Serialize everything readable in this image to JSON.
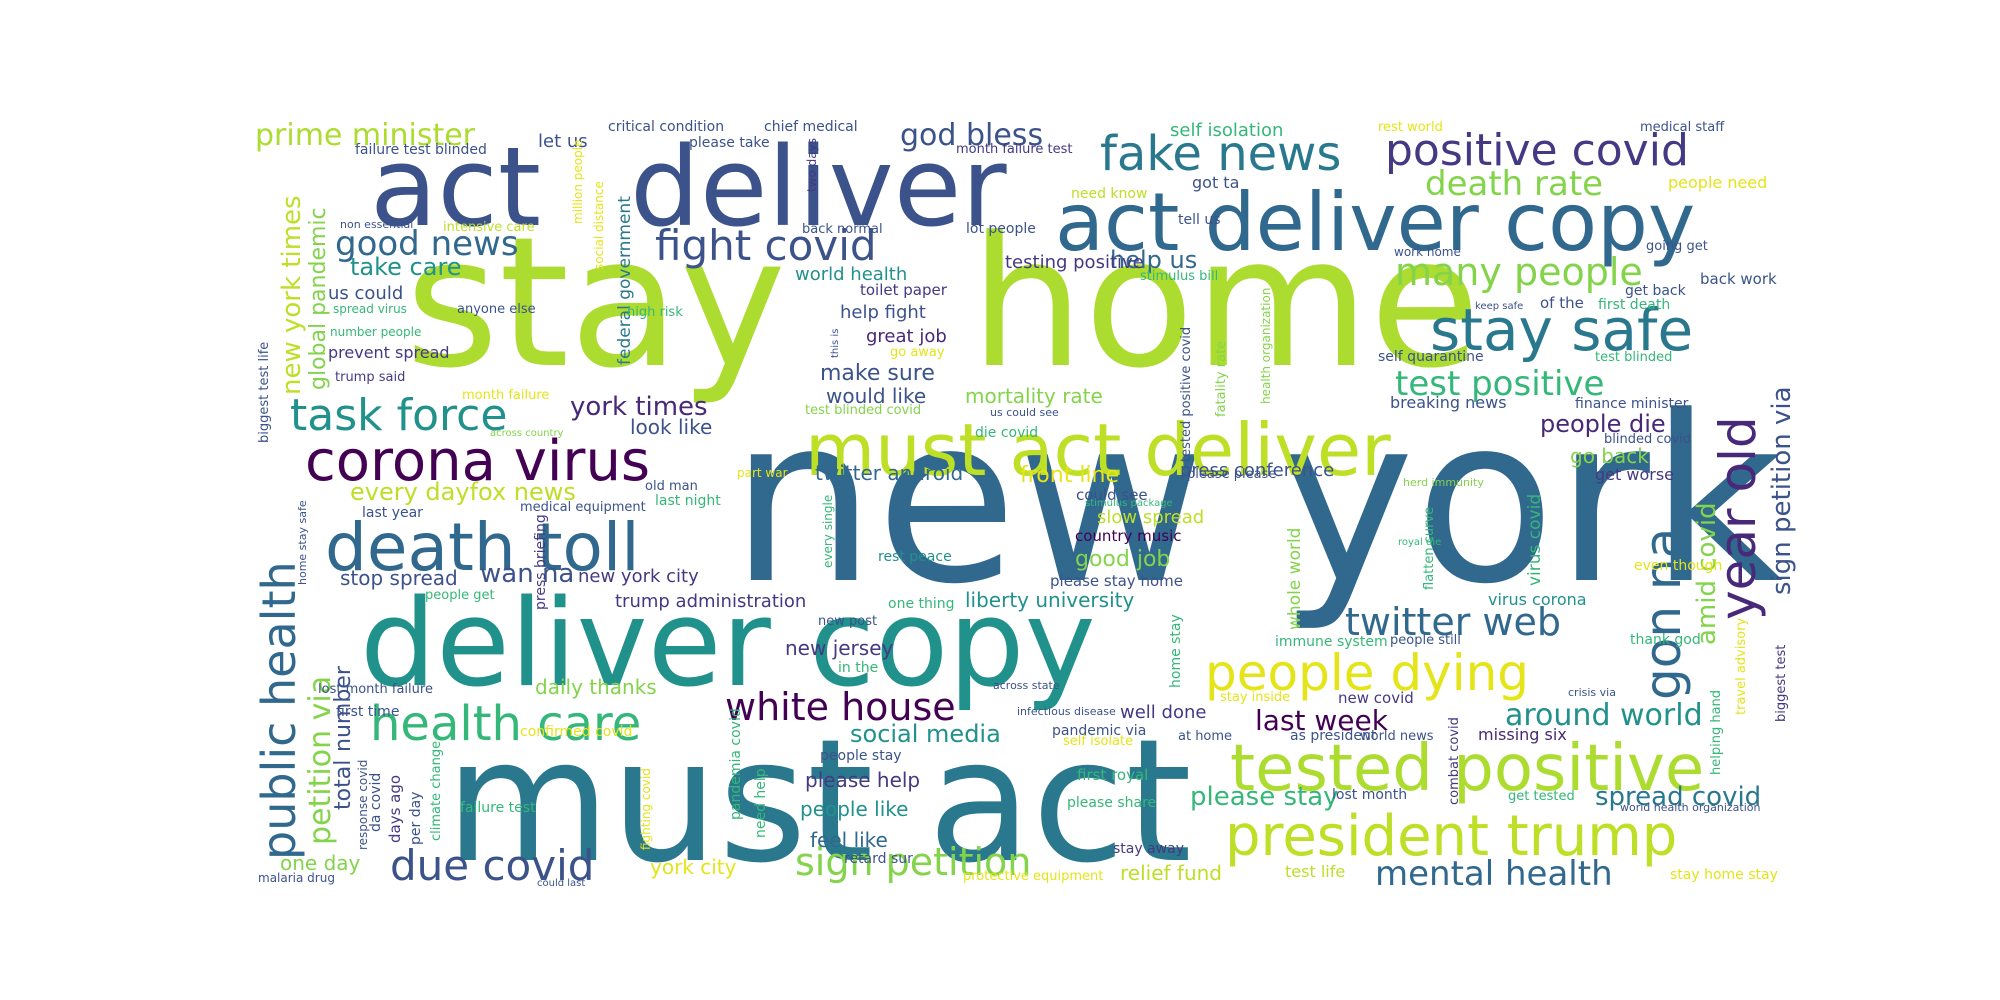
{
  "palette": {
    "lime": "#bddf26",
    "yellowgreen": "#addc30",
    "yellow": "#e5e419",
    "green": "#5ec962",
    "lightgreen": "#84d44b",
    "teal": "#21918c",
    "tealblue": "#2a788e",
    "blue": "#31688e",
    "darkblue": "#3b528b",
    "indigo": "#443983",
    "purple": "#482878",
    "darkpurple": "#440154",
    "seagreen": "#22a884",
    "mint": "#35b779"
  },
  "words": [
    {
      "text": "new york",
      "color": "#31688e"
    },
    {
      "text": "stay",
      "color": "#addc30"
    },
    {
      "text": "home",
      "color": "#addc30"
    },
    {
      "text": "must act",
      "color": "#2a788e"
    },
    {
      "text": "deliver copy",
      "color": "#21918c"
    },
    {
      "text": "act",
      "color": "#3b528b"
    },
    {
      "text": "deliver",
      "color": "#3b528b"
    },
    {
      "text": "act deliver copy",
      "color": "#31688e"
    },
    {
      "text": "must act deliver",
      "color": "#bddf26"
    },
    {
      "text": "death toll",
      "color": "#31688e"
    },
    {
      "text": "corona virus",
      "color": "#440154"
    },
    {
      "text": "tested positive",
      "color": "#addc30"
    },
    {
      "text": "president trump",
      "color": "#bddf26"
    },
    {
      "text": "people dying",
      "color": "#e5e419"
    },
    {
      "text": "stay safe",
      "color": "#2a788e"
    },
    {
      "text": "health care",
      "color": "#35b779"
    },
    {
      "text": "fake news",
      "color": "#2a788e"
    },
    {
      "text": "positive covid",
      "color": "#443983"
    },
    {
      "text": "year old",
      "color": "#482878"
    },
    {
      "text": "gon na",
      "color": "#31688e"
    },
    {
      "text": "public health",
      "color": "#31688e"
    },
    {
      "text": "task force",
      "color": "#21918c"
    },
    {
      "text": "fight covid",
      "color": "#3b528b"
    },
    {
      "text": "white house",
      "color": "#440154"
    },
    {
      "text": "twitter web",
      "color": "#31688e"
    },
    {
      "text": "due covid",
      "color": "#3b528b"
    },
    {
      "text": "sign petition",
      "color": "#84d44b"
    },
    {
      "text": "mental health",
      "color": "#31688e"
    },
    {
      "text": "good news",
      "color": "#31688e"
    },
    {
      "text": "death rate",
      "color": "#84d44b"
    },
    {
      "text": "many people",
      "color": "#84d44b"
    },
    {
      "text": "test positive",
      "color": "#35b779"
    },
    {
      "text": "god bless",
      "color": "#3b528b"
    },
    {
      "text": "prime minister",
      "color": "#addc30"
    },
    {
      "text": "petition via",
      "color": "#84d44b"
    },
    {
      "text": "sign petition via",
      "color": "#3b528b"
    },
    {
      "text": "amid covid",
      "color": "#84d44b"
    },
    {
      "text": "around world",
      "color": "#21918c"
    },
    {
      "text": "last week",
      "color": "#440154"
    },
    {
      "text": "spread covid",
      "color": "#2a788e"
    },
    {
      "text": "please stay",
      "color": "#35b779"
    },
    {
      "text": "every dayfox news",
      "color": "#bddf26"
    },
    {
      "text": "york times",
      "color": "#482878"
    },
    {
      "text": "new york times",
      "color": "#bddf26"
    },
    {
      "text": "global pandemic",
      "color": "#84d44b"
    },
    {
      "text": "take care",
      "color": "#21918c"
    },
    {
      "text": "social media",
      "color": "#21918c"
    },
    {
      "text": "people die",
      "color": "#482878"
    },
    {
      "text": "make sure",
      "color": "#3b528b"
    },
    {
      "text": "wan na",
      "color": "#3b528b"
    },
    {
      "text": "total",
      "color": "#3b528b"
    },
    {
      "text": "number",
      "color": "#3b528b"
    },
    {
      "text": "good job",
      "color": "#84d44b"
    },
    {
      "text": "front line",
      "color": "#e5e419"
    },
    {
      "text": "one day",
      "color": "#84d44b"
    },
    {
      "text": "relief fund",
      "color": "#bddf26"
    },
    {
      "text": "help us",
      "color": "#31688e"
    },
    {
      "text": "please help",
      "color": "#443983"
    },
    {
      "text": "people like",
      "color": "#21918c"
    },
    {
      "text": "feel like",
      "color": "#31688e"
    },
    {
      "text": "york city",
      "color": "#e5e419"
    },
    {
      "text": "daily thanks",
      "color": "#84d44b"
    },
    {
      "text": "new jersey",
      "color": "#443983"
    },
    {
      "text": "twitter android",
      "color": "#31688e"
    },
    {
      "text": "mortality rate",
      "color": "#84d44b"
    },
    {
      "text": "would like",
      "color": "#3b528b"
    },
    {
      "text": "look like",
      "color": "#3b528b"
    },
    {
      "text": "new york city",
      "color": "#443983"
    },
    {
      "text": "trump administration",
      "color": "#443983"
    },
    {
      "text": "liberty university",
      "color": "#21918c"
    },
    {
      "text": "stop spread",
      "color": "#3b528b"
    },
    {
      "text": "press conference",
      "color": "#3b528b"
    },
    {
      "text": "go back",
      "color": "#84d44b"
    },
    {
      "text": "get worse",
      "color": "#443983"
    },
    {
      "text": "breaking news",
      "color": "#3b528b"
    },
    {
      "text": "world health",
      "color": "#21918c"
    },
    {
      "text": "testing positive",
      "color": "#443983"
    },
    {
      "text": "help fight",
      "color": "#3b528b"
    },
    {
      "text": "great job",
      "color": "#482878"
    },
    {
      "text": "toilet paper",
      "color": "#443983"
    },
    {
      "text": "self isolation",
      "color": "#35b779"
    },
    {
      "text": "let us",
      "color": "#3b528b"
    },
    {
      "text": "federal government",
      "color": "#2a788e"
    },
    {
      "text": "us could",
      "color": "#3b528b"
    },
    {
      "text": "prevent spread",
      "color": "#443983"
    },
    {
      "text": "country music",
      "color": "#440154"
    },
    {
      "text": "slow spread",
      "color": "#bddf26"
    },
    {
      "text": "could see",
      "color": "#3b528b"
    },
    {
      "text": "please stay home",
      "color": "#3b528b"
    },
    {
      "text": "whole world",
      "color": "#84d44b"
    },
    {
      "text": "virus covid",
      "color": "#35b779"
    },
    {
      "text": "virus corona",
      "color": "#21918c"
    },
    {
      "text": "well done",
      "color": "#443983"
    },
    {
      "text": "new covid",
      "color": "#443983"
    },
    {
      "text": "missing six",
      "color": "#482878"
    },
    {
      "text": "please share",
      "color": "#35b779"
    },
    {
      "text": "first royal",
      "color": "#35b779"
    },
    {
      "text": "stay away",
      "color": "#443983"
    },
    {
      "text": "test life",
      "color": "#bddf26"
    },
    {
      "text": "lost month",
      "color": "#3b528b"
    },
    {
      "text": "get tested",
      "color": "#35b779"
    },
    {
      "text": "home stay",
      "color": "#35b779"
    },
    {
      "text": "biggest test",
      "color": "#443983"
    },
    {
      "text": "got ta",
      "color": "#3b528b"
    },
    {
      "text": "need know",
      "color": "#bddf26"
    },
    {
      "text": "tell us",
      "color": "#3b528b"
    },
    {
      "text": "lot people",
      "color": "#3b528b"
    },
    {
      "text": "back normal",
      "color": "#3b528b"
    },
    {
      "text": "two days",
      "color": "#443983"
    },
    {
      "text": "month failure test",
      "color": "#443983"
    },
    {
      "text": "please take",
      "color": "#3b528b"
    },
    {
      "text": "chief medical",
      "color": "#3b528b"
    },
    {
      "text": "critical condition",
      "color": "#3b528b"
    },
    {
      "text": "failure test blinded",
      "color": "#3b528b"
    },
    {
      "text": "non essential",
      "color": "#3b528b"
    },
    {
      "text": "intensive care",
      "color": "#bddf26"
    },
    {
      "text": "million people",
      "color": "#e5e419"
    },
    {
      "text": "social distance",
      "color": "#e5e419"
    },
    {
      "text": "rest world",
      "color": "#e5e419"
    },
    {
      "text": "medical staff",
      "color": "#3b528b"
    },
    {
      "text": "people need",
      "color": "#e5e419"
    },
    {
      "text": "going get",
      "color": "#3b528b"
    },
    {
      "text": "back work",
      "color": "#3b528b"
    },
    {
      "text": "get back",
      "color": "#3b528b"
    },
    {
      "text": "first death",
      "color": "#35b779"
    },
    {
      "text": "of the",
      "color": "#3b528b"
    },
    {
      "text": "keep safe",
      "color": "#3b528b"
    },
    {
      "text": "work home",
      "color": "#3b528b"
    },
    {
      "text": "stimulus bill",
      "color": "#35b779"
    },
    {
      "text": "self quarantine",
      "color": "#3b528b"
    },
    {
      "text": "test blinded",
      "color": "#35b779"
    },
    {
      "text": "finance minister",
      "color": "#3b528b"
    },
    {
      "text": "blinded covid",
      "color": "#3b528b"
    },
    {
      "text": "fatality rate",
      "color": "#84d44b"
    },
    {
      "text": "health organization",
      "color": "#84d44b"
    },
    {
      "text": "tested positive covid",
      "color": "#3b528b"
    },
    {
      "text": "this is",
      "color": "#3b528b"
    },
    {
      "text": "go away",
      "color": "#e5e419"
    },
    {
      "text": "us could see",
      "color": "#3b528b"
    },
    {
      "text": "die covid",
      "color": "#35b779"
    },
    {
      "text": "test blinded covid",
      "color": "#84d44b"
    },
    {
      "text": "please please",
      "color": "#3b528b"
    },
    {
      "text": "stimulus package",
      "color": "#35b779"
    },
    {
      "text": "herd immunity",
      "color": "#84d44b"
    },
    {
      "text": "royal die",
      "color": "#35b779"
    },
    {
      "text": "flatten curve",
      "color": "#35b779"
    },
    {
      "text": "even though",
      "color": "#e5e419"
    },
    {
      "text": "thank god",
      "color": "#35b779"
    },
    {
      "text": "immune system",
      "color": "#35b779"
    },
    {
      "text": "people still",
      "color": "#3b528b"
    },
    {
      "text": "travel advisory",
      "color": "#e5e419"
    },
    {
      "text": "helping hand",
      "color": "#35b779"
    },
    {
      "text": "stay inside",
      "color": "#e5e419"
    },
    {
      "text": "crisis via",
      "color": "#3b528b"
    },
    {
      "text": "world health organization",
      "color": "#3b528b"
    },
    {
      "text": "stay home stay",
      "color": "#e5e419"
    },
    {
      "text": "as president",
      "color": "#3b528b"
    },
    {
      "text": "at home",
      "color": "#3b528b"
    },
    {
      "text": "world news",
      "color": "#3b528b"
    },
    {
      "text": "combat covid",
      "color": "#443983"
    },
    {
      "text": "pandemic via",
      "color": "#3b528b"
    },
    {
      "text": "self isolate",
      "color": "#e5e419"
    },
    {
      "text": "infectious disease",
      "color": "#3b528b"
    },
    {
      "text": "across state",
      "color": "#3b528b"
    },
    {
      "text": "retard sur",
      "color": "#3b528b"
    },
    {
      "text": "protective equipment",
      "color": "#e5e419"
    },
    {
      "text": "people stay",
      "color": "#3b528b"
    },
    {
      "text": "in the",
      "color": "#35b779"
    },
    {
      "text": "new post",
      "color": "#3b528b"
    },
    {
      "text": "one thing",
      "color": "#35b779"
    },
    {
      "text": "rest peace",
      "color": "#21918c"
    },
    {
      "text": "every single",
      "color": "#35b779"
    },
    {
      "text": "pandemia covid",
      "color": "#35b779"
    },
    {
      "text": "need help",
      "color": "#35b779"
    },
    {
      "text": "fighting covid",
      "color": "#e5e419"
    },
    {
      "text": "confirmed covid",
      "color": "#e5e419"
    },
    {
      "text": "first time",
      "color": "#3b528b"
    },
    {
      "text": "lost month failure",
      "color": "#3b528b"
    },
    {
      "text": "days ago",
      "color": "#443983"
    },
    {
      "text": "da covid",
      "color": "#3b528b"
    },
    {
      "text": "per day",
      "color": "#3b528b"
    },
    {
      "text": "climate change",
      "color": "#35b779"
    },
    {
      "text": "response covid",
      "color": "#3b528b"
    },
    {
      "text": "failure test",
      "color": "#35b779"
    },
    {
      "text": "malaria drug",
      "color": "#3b528b"
    },
    {
      "text": "could last",
      "color": "#3b528b"
    },
    {
      "text": "people get",
      "color": "#35b779"
    },
    {
      "text": "home stay safe",
      "color": "#3b528b"
    },
    {
      "text": "press briefing",
      "color": "#443983"
    },
    {
      "text": "last year",
      "color": "#3b528b"
    },
    {
      "text": "medical equipment",
      "color": "#3b528b"
    },
    {
      "text": "last night",
      "color": "#35b779"
    },
    {
      "text": "old man",
      "color": "#3b528b"
    },
    {
      "text": "part war",
      "color": "#e5e419"
    },
    {
      "text": "month failure",
      "color": "#e5e419"
    },
    {
      "text": "across country",
      "color": "#84d44b"
    },
    {
      "text": "trump said",
      "color": "#443983"
    },
    {
      "text": "number people",
      "color": "#35b779"
    },
    {
      "text": "spread virus",
      "color": "#35b779"
    },
    {
      "text": "anyone else",
      "color": "#3b528b"
    },
    {
      "text": "high risk",
      "color": "#35b779"
    },
    {
      "text": "biggest test life",
      "color": "#3b528b"
    }
  ]
}
